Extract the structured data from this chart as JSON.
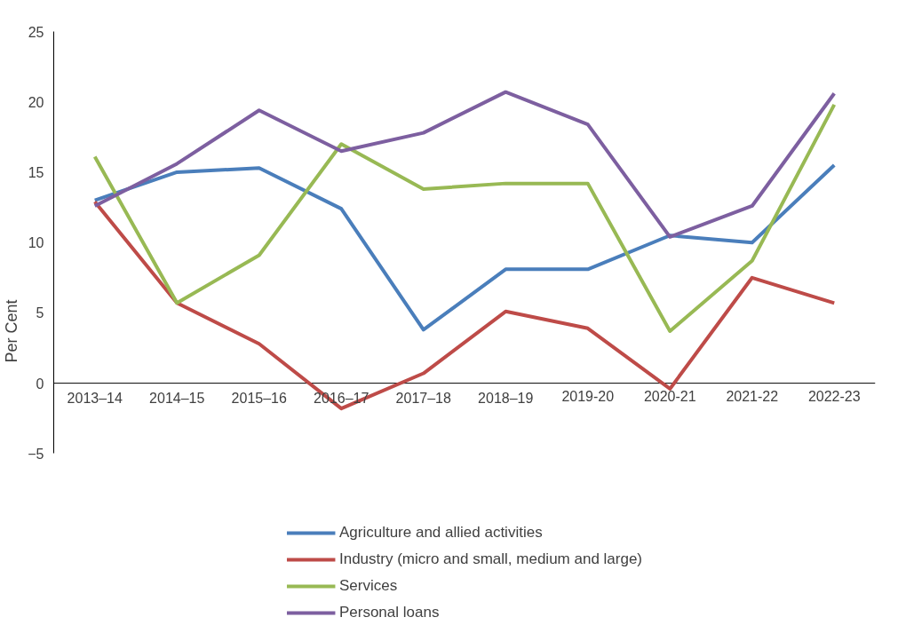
{
  "chart_data": {
    "type": "line",
    "ylabel": "Per Cent",
    "categories": [
      "2013–14",
      "2014–15",
      "2015–16",
      "2016–17",
      "2017–18",
      "2018–19",
      "2019-20",
      "2020-21",
      "2021-22",
      "2022-23"
    ],
    "series": [
      {
        "name": "Agriculture and allied activities",
        "color": "#4a7ebb",
        "values": [
          13.0,
          15.0,
          15.3,
          12.4,
          3.8,
          8.1,
          8.1,
          10.5,
          10.0,
          15.5
        ]
      },
      {
        "name": "Industry (micro and small, medium and large)",
        "color": "#be4b48",
        "values": [
          12.9,
          5.7,
          2.8,
          -1.8,
          0.7,
          5.1,
          3.9,
          -0.4,
          7.5,
          5.7
        ]
      },
      {
        "name": "Services",
        "color": "#98b954",
        "values": [
          16.1,
          5.7,
          9.1,
          17.0,
          13.8,
          14.2,
          14.2,
          3.7,
          8.7,
          19.8
        ]
      },
      {
        "name": "Personal loans",
        "color": "#7d5fa0",
        "values": [
          12.6,
          15.6,
          19.4,
          16.5,
          17.8,
          20.7,
          18.4,
          10.4,
          12.6,
          20.6
        ]
      }
    ],
    "ylim": [
      -5,
      25
    ],
    "yticks": [
      -5,
      0,
      5,
      10,
      15,
      20,
      25
    ],
    "grid": false,
    "legend": "bottom",
    "marker": "none",
    "line_style": "solid"
  }
}
